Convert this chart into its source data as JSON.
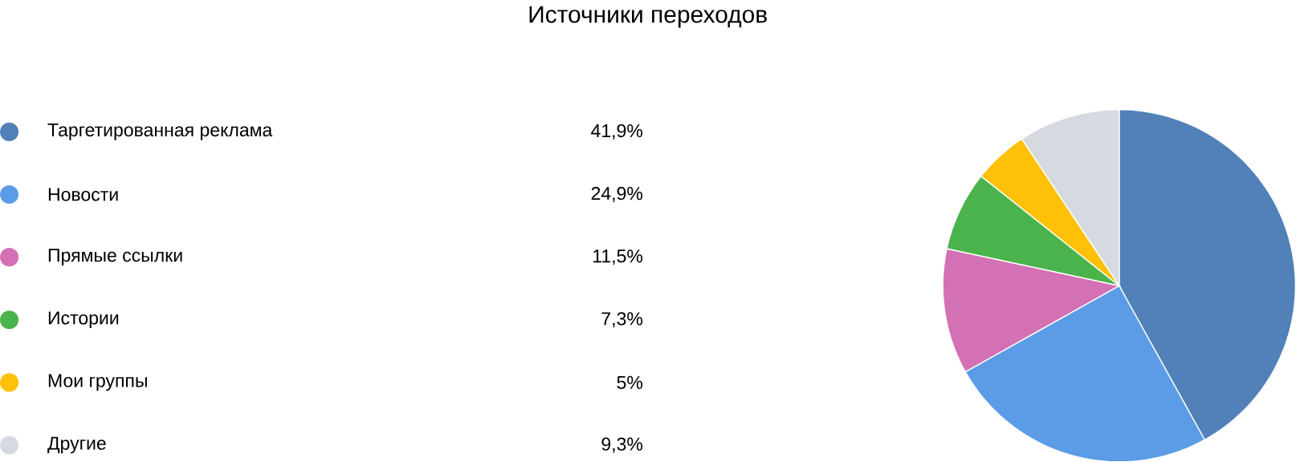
{
  "chart_data": {
    "type": "pie",
    "title": "Источники переходов",
    "categories": [
      "Таргетированная реклама",
      "Новости",
      "Прямые ссылки",
      "Истории",
      "Мои группы",
      "Другие"
    ],
    "values": [
      41.9,
      24.9,
      11.5,
      7.3,
      5,
      9.3
    ],
    "value_labels": [
      "41,9%",
      "24,9%",
      "11,5%",
      "7,3%",
      "5%",
      "9,3%"
    ],
    "colors": [
      "#5181b8",
      "#5c9ce6",
      "#d371b4",
      "#4bb34b",
      "#ffc107",
      "#d5dae1"
    ],
    "legend": "left"
  }
}
